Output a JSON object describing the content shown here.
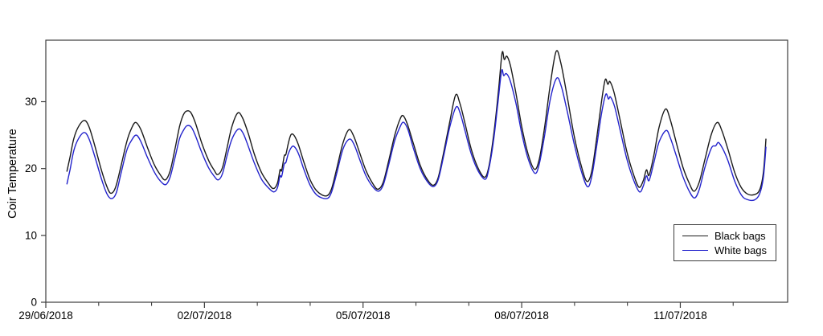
{
  "figure": {
    "background": "#ffffff",
    "axis_color": "#3c3c3c",
    "text_color": "#000000"
  },
  "legend": {
    "position": "lower-right",
    "items": [
      {
        "label": "Black bags",
        "color": "#1a1a1a"
      },
      {
        "label": "White bags",
        "color": "#2323cc"
      }
    ]
  },
  "chart_data": {
    "type": "line",
    "title": "",
    "xlabel": "",
    "ylabel": "Coir Temperature",
    "grid": false,
    "frame": "full-box",
    "legend_position": "lower right",
    "x_unit": "days since 29/06/2018 00:00",
    "xlim": [
      0,
      14.03
    ],
    "ylim": [
      0,
      39.2
    ],
    "y_ticks": [
      0,
      10,
      20,
      30
    ],
    "x_major_ticks": [
      {
        "t": 0,
        "label": "29/06/2018"
      },
      {
        "t": 3,
        "label": "02/07/2018"
      },
      {
        "t": 6,
        "label": "05/07/2018"
      },
      {
        "t": 9,
        "label": "08/07/2018"
      },
      {
        "t": 12,
        "label": "11/07/2018"
      }
    ],
    "x_minor_ticks": [
      1,
      2,
      4,
      5,
      7,
      8,
      10,
      11,
      13
    ],
    "series": [
      {
        "name": "Black bags",
        "color": "#1a1a1a",
        "points": [
          [
            0.4,
            19.6
          ],
          [
            0.46,
            21.8
          ],
          [
            0.53,
            24.5
          ],
          [
            0.62,
            26.3
          ],
          [
            0.73,
            27.2
          ],
          [
            0.82,
            26.2
          ],
          [
            0.93,
            23.3
          ],
          [
            1.05,
            19.8
          ],
          [
            1.15,
            17.4
          ],
          [
            1.23,
            16.3
          ],
          [
            1.32,
            17.2
          ],
          [
            1.42,
            20.3
          ],
          [
            1.53,
            24.0
          ],
          [
            1.62,
            26.0
          ],
          [
            1.7,
            26.9
          ],
          [
            1.8,
            25.8
          ],
          [
            1.92,
            23.2
          ],
          [
            2.05,
            20.6
          ],
          [
            2.17,
            19.0
          ],
          [
            2.26,
            18.3
          ],
          [
            2.35,
            19.6
          ],
          [
            2.44,
            22.8
          ],
          [
            2.53,
            26.3
          ],
          [
            2.6,
            28.0
          ],
          [
            2.66,
            28.6
          ],
          [
            2.74,
            28.4
          ],
          [
            2.83,
            26.8
          ],
          [
            2.95,
            23.8
          ],
          [
            3.08,
            21.2
          ],
          [
            3.18,
            19.8
          ],
          [
            3.25,
            19.1
          ],
          [
            3.34,
            20.1
          ],
          [
            3.43,
            23.2
          ],
          [
            3.52,
            26.3
          ],
          [
            3.63,
            28.3
          ],
          [
            3.72,
            27.6
          ],
          [
            3.83,
            25.2
          ],
          [
            3.95,
            22.0
          ],
          [
            4.08,
            19.4
          ],
          [
            4.2,
            17.9
          ],
          [
            4.3,
            17.0
          ],
          [
            4.38,
            17.8
          ],
          [
            4.43,
            19.8
          ],
          [
            4.46,
            19.7
          ],
          [
            4.51,
            21.9
          ],
          [
            4.54,
            22.1
          ],
          [
            4.59,
            23.9
          ],
          [
            4.64,
            25.1
          ],
          [
            4.7,
            24.9
          ],
          [
            4.78,
            23.5
          ],
          [
            4.88,
            21.0
          ],
          [
            5.0,
            18.3
          ],
          [
            5.13,
            16.6
          ],
          [
            5.3,
            15.9
          ],
          [
            5.4,
            16.9
          ],
          [
            5.5,
            19.9
          ],
          [
            5.62,
            23.8
          ],
          [
            5.73,
            25.8
          ],
          [
            5.82,
            24.9
          ],
          [
            5.93,
            22.5
          ],
          [
            6.05,
            19.8
          ],
          [
            6.18,
            17.8
          ],
          [
            6.28,
            16.9
          ],
          [
            6.38,
            17.9
          ],
          [
            6.48,
            21.0
          ],
          [
            6.6,
            25.0
          ],
          [
            6.7,
            27.4
          ],
          [
            6.76,
            27.9
          ],
          [
            6.84,
            26.6
          ],
          [
            6.95,
            23.8
          ],
          [
            7.08,
            20.5
          ],
          [
            7.22,
            18.3
          ],
          [
            7.33,
            17.5
          ],
          [
            7.42,
            18.6
          ],
          [
            7.52,
            22.2
          ],
          [
            7.64,
            27.0
          ],
          [
            7.75,
            31.0
          ],
          [
            7.83,
            29.8
          ],
          [
            7.93,
            26.7
          ],
          [
            8.05,
            22.8
          ],
          [
            8.18,
            20.0
          ],
          [
            8.3,
            18.7
          ],
          [
            8.38,
            20.3
          ],
          [
            8.47,
            25.0
          ],
          [
            8.56,
            31.5
          ],
          [
            8.63,
            37.3
          ],
          [
            8.67,
            36.3
          ],
          [
            8.72,
            36.8
          ],
          [
            8.79,
            35.3
          ],
          [
            8.89,
            31.3
          ],
          [
            9.0,
            26.3
          ],
          [
            9.12,
            22.2
          ],
          [
            9.24,
            19.9
          ],
          [
            9.33,
            21.3
          ],
          [
            9.43,
            26.0
          ],
          [
            9.54,
            32.5
          ],
          [
            9.65,
            37.5
          ],
          [
            9.74,
            35.8
          ],
          [
            9.86,
            30.8
          ],
          [
            9.99,
            25.0
          ],
          [
            10.12,
            20.6
          ],
          [
            10.23,
            18.1
          ],
          [
            10.32,
            19.4
          ],
          [
            10.41,
            24.0
          ],
          [
            10.51,
            30.0
          ],
          [
            10.58,
            33.3
          ],
          [
            10.63,
            32.6
          ],
          [
            10.67,
            33.0
          ],
          [
            10.75,
            31.3
          ],
          [
            10.86,
            27.3
          ],
          [
            10.99,
            22.5
          ],
          [
            11.12,
            19.0
          ],
          [
            11.22,
            17.2
          ],
          [
            11.3,
            18.2
          ],
          [
            11.36,
            19.8
          ],
          [
            11.41,
            19.0
          ],
          [
            11.5,
            22.0
          ],
          [
            11.6,
            26.2
          ],
          [
            11.72,
            28.9
          ],
          [
            11.81,
            27.3
          ],
          [
            11.92,
            24.0
          ],
          [
            12.05,
            20.2
          ],
          [
            12.17,
            17.8
          ],
          [
            12.26,
            16.6
          ],
          [
            12.36,
            18.0
          ],
          [
            12.47,
            21.5
          ],
          [
            12.59,
            25.2
          ],
          [
            12.7,
            26.9
          ],
          [
            12.79,
            25.6
          ],
          [
            12.9,
            22.9
          ],
          [
            13.03,
            19.4
          ],
          [
            13.15,
            17.2
          ],
          [
            13.27,
            16.2
          ],
          [
            13.4,
            16.1
          ],
          [
            13.5,
            16.8
          ],
          [
            13.57,
            19.3
          ],
          [
            13.62,
            24.4
          ]
        ]
      },
      {
        "name": "White bags",
        "color": "#2323cc",
        "points": [
          [
            0.4,
            17.7
          ],
          [
            0.46,
            19.9
          ],
          [
            0.53,
            22.7
          ],
          [
            0.62,
            24.5
          ],
          [
            0.73,
            25.4
          ],
          [
            0.82,
            24.4
          ],
          [
            0.93,
            21.7
          ],
          [
            1.05,
            18.5
          ],
          [
            1.15,
            16.3
          ],
          [
            1.24,
            15.5
          ],
          [
            1.33,
            16.3
          ],
          [
            1.42,
            19.2
          ],
          [
            1.53,
            22.7
          ],
          [
            1.62,
            24.2
          ],
          [
            1.71,
            25.0
          ],
          [
            1.8,
            24.0
          ],
          [
            1.92,
            21.7
          ],
          [
            2.05,
            19.5
          ],
          [
            2.17,
            18.1
          ],
          [
            2.27,
            17.6
          ],
          [
            2.35,
            18.7
          ],
          [
            2.44,
            21.5
          ],
          [
            2.53,
            24.5
          ],
          [
            2.61,
            25.8
          ],
          [
            2.67,
            26.4
          ],
          [
            2.75,
            26.2
          ],
          [
            2.83,
            24.9
          ],
          [
            2.95,
            22.4
          ],
          [
            3.08,
            20.1
          ],
          [
            3.18,
            18.9
          ],
          [
            3.26,
            18.3
          ],
          [
            3.34,
            19.2
          ],
          [
            3.43,
            22.0
          ],
          [
            3.52,
            24.4
          ],
          [
            3.64,
            25.9
          ],
          [
            3.73,
            25.3
          ],
          [
            3.83,
            23.3
          ],
          [
            3.95,
            20.7
          ],
          [
            4.08,
            18.4
          ],
          [
            4.2,
            17.2
          ],
          [
            4.31,
            16.5
          ],
          [
            4.38,
            17.1
          ],
          [
            4.43,
            18.9
          ],
          [
            4.46,
            18.8
          ],
          [
            4.51,
            20.7
          ],
          [
            4.54,
            20.9
          ],
          [
            4.59,
            22.3
          ],
          [
            4.66,
            23.3
          ],
          [
            4.72,
            23.1
          ],
          [
            4.79,
            22.0
          ],
          [
            4.88,
            19.9
          ],
          [
            5.0,
            17.5
          ],
          [
            5.13,
            16.0
          ],
          [
            5.31,
            15.5
          ],
          [
            5.4,
            16.4
          ],
          [
            5.5,
            19.2
          ],
          [
            5.62,
            22.9
          ],
          [
            5.74,
            24.4
          ],
          [
            5.83,
            23.6
          ],
          [
            5.93,
            21.5
          ],
          [
            6.05,
            19.0
          ],
          [
            6.18,
            17.3
          ],
          [
            6.29,
            16.6
          ],
          [
            6.38,
            17.5
          ],
          [
            6.48,
            20.4
          ],
          [
            6.6,
            24.2
          ],
          [
            6.71,
            26.4
          ],
          [
            6.77,
            26.9
          ],
          [
            6.85,
            25.8
          ],
          [
            6.95,
            23.1
          ],
          [
            7.08,
            20.0
          ],
          [
            7.22,
            18.0
          ],
          [
            7.33,
            17.3
          ],
          [
            7.42,
            18.3
          ],
          [
            7.52,
            21.7
          ],
          [
            7.64,
            26.2
          ],
          [
            7.76,
            29.2
          ],
          [
            7.84,
            28.2
          ],
          [
            7.93,
            25.6
          ],
          [
            8.05,
            22.1
          ],
          [
            8.18,
            19.6
          ],
          [
            8.31,
            18.4
          ],
          [
            8.38,
            20.0
          ],
          [
            8.47,
            24.3
          ],
          [
            8.55,
            29.8
          ],
          [
            8.62,
            34.6
          ],
          [
            8.66,
            33.9
          ],
          [
            8.71,
            34.2
          ],
          [
            8.78,
            33.2
          ],
          [
            8.89,
            29.8
          ],
          [
            9.0,
            25.3
          ],
          [
            9.12,
            21.5
          ],
          [
            9.25,
            19.3
          ],
          [
            9.33,
            20.6
          ],
          [
            9.43,
            24.8
          ],
          [
            9.54,
            30.3
          ],
          [
            9.66,
            33.5
          ],
          [
            9.75,
            32.3
          ],
          [
            9.86,
            28.6
          ],
          [
            9.99,
            23.8
          ],
          [
            10.12,
            19.8
          ],
          [
            10.24,
            17.3
          ],
          [
            10.32,
            18.6
          ],
          [
            10.41,
            22.9
          ],
          [
            10.51,
            28.2
          ],
          [
            10.59,
            31.1
          ],
          [
            10.64,
            30.4
          ],
          [
            10.68,
            30.7
          ],
          [
            10.76,
            29.2
          ],
          [
            10.86,
            25.8
          ],
          [
            10.99,
            21.4
          ],
          [
            11.12,
            18.2
          ],
          [
            11.23,
            16.5
          ],
          [
            11.3,
            17.4
          ],
          [
            11.36,
            18.9
          ],
          [
            11.41,
            18.2
          ],
          [
            11.5,
            20.9
          ],
          [
            11.6,
            24.0
          ],
          [
            11.73,
            25.7
          ],
          [
            11.81,
            24.6
          ],
          [
            11.92,
            22.0
          ],
          [
            12.05,
            18.8
          ],
          [
            12.17,
            16.6
          ],
          [
            12.27,
            15.6
          ],
          [
            12.36,
            16.9
          ],
          [
            12.47,
            20.3
          ],
          [
            12.59,
            23.1
          ],
          [
            12.67,
            23.4
          ],
          [
            12.72,
            23.9
          ],
          [
            12.8,
            23.0
          ],
          [
            12.9,
            21.2
          ],
          [
            13.03,
            18.1
          ],
          [
            13.15,
            16.1
          ],
          [
            13.25,
            15.4
          ],
          [
            13.4,
            15.3
          ],
          [
            13.5,
            16.2
          ],
          [
            13.57,
            18.6
          ],
          [
            13.62,
            23.2
          ]
        ]
      }
    ]
  }
}
